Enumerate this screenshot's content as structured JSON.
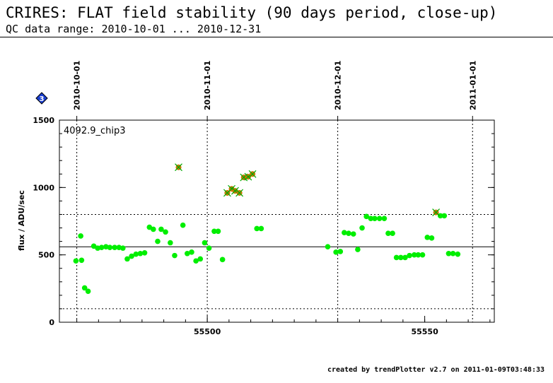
{
  "header": {
    "title": "CRIRES: FLAT field stability (90 days period, close-up)",
    "subtitle": "QC data range: 2010-10-01 ... 2010-12-31"
  },
  "footer": {
    "text": "created by trendPlotter v2.7 on 2011-01-09T03:48:33"
  },
  "marker_badge": {
    "label": "3",
    "color": "#1a3fd0"
  },
  "chart_data": {
    "type": "scatter",
    "panel_label": "4092.9_chip3",
    "xlabel": "",
    "ylabel": "flux / ADU/sec",
    "xlim": [
      55466,
      55566
    ],
    "ylim": [
      0,
      1500
    ],
    "x_ticks": [
      55500,
      55550
    ],
    "x_minor_step": 5,
    "y_ticks": [
      0,
      500,
      1000,
      1500
    ],
    "y_minor_step": 100,
    "date_ticks": [
      {
        "x": 55470,
        "label": "2010-10-01"
      },
      {
        "x": 55500,
        "label": "2010-11-01"
      },
      {
        "x": 55530,
        "label": "2010-12-01"
      },
      {
        "x": 55561,
        "label": "2011-01-01"
      }
    ],
    "reference_lines": {
      "mean": 560,
      "upper_limit": 800,
      "lower_limit": 100
    },
    "grid": false,
    "colors": {
      "normal": "#00ee00",
      "outlier_fill": "#c87800",
      "outlier_cross": "#00aa00"
    },
    "series": [
      {
        "name": "",
        "kind": "normal",
        "points": [
          [
            55469.8,
            455
          ],
          [
            55470.9,
            640
          ],
          [
            55471.1,
            460
          ],
          [
            55471.8,
            255
          ],
          [
            55472.6,
            230
          ],
          [
            55473.9,
            565
          ],
          [
            55474.8,
            550
          ],
          [
            55475.7,
            555
          ],
          [
            55476.7,
            560
          ],
          [
            55477.6,
            555
          ],
          [
            55478.7,
            555
          ],
          [
            55479.7,
            555
          ],
          [
            55480.6,
            550
          ],
          [
            55481.6,
            470
          ],
          [
            55482.6,
            490
          ],
          [
            55483.6,
            505
          ],
          [
            55484.6,
            510
          ],
          [
            55485.6,
            515
          ],
          [
            55486.7,
            705
          ],
          [
            55487.6,
            690
          ],
          [
            55488.6,
            600
          ],
          [
            55489.4,
            690
          ],
          [
            55490.4,
            670
          ],
          [
            55491.5,
            590
          ],
          [
            55492.5,
            495
          ],
          [
            55493.4,
            1150
          ],
          [
            55494.4,
            720
          ],
          [
            55495.4,
            510
          ],
          [
            55496.4,
            520
          ],
          [
            55497.4,
            455
          ],
          [
            55498.4,
            470
          ],
          [
            55499.4,
            590
          ],
          [
            55500.4,
            550
          ],
          [
            55501.6,
            675
          ],
          [
            55502.5,
            675
          ],
          [
            55503.5,
            465
          ],
          [
            55504.6,
            960
          ],
          [
            55505.6,
            990
          ],
          [
            55506.4,
            975
          ],
          [
            55507.4,
            960
          ],
          [
            55508.4,
            1075
          ],
          [
            55509.4,
            1080
          ],
          [
            55510.4,
            1100
          ],
          [
            55511.4,
            695
          ],
          [
            55512.4,
            695
          ],
          [
            55527.7,
            560
          ],
          [
            55529.6,
            520
          ],
          [
            55530.6,
            525
          ],
          [
            55531.5,
            665
          ],
          [
            55532.5,
            660
          ],
          [
            55533.6,
            655
          ],
          [
            55534.6,
            540
          ],
          [
            55535.6,
            700
          ],
          [
            55536.6,
            785
          ],
          [
            55537.6,
            770
          ],
          [
            55538.5,
            770
          ],
          [
            55539.6,
            770
          ],
          [
            55540.7,
            770
          ],
          [
            55541.6,
            660
          ],
          [
            55542.6,
            660
          ],
          [
            55543.5,
            480
          ],
          [
            55544.5,
            480
          ],
          [
            55545.5,
            480
          ],
          [
            55546.5,
            495
          ],
          [
            55547.6,
            500
          ],
          [
            55548.5,
            500
          ],
          [
            55549.5,
            500
          ],
          [
            55550.6,
            630
          ],
          [
            55551.6,
            625
          ],
          [
            55552.6,
            815
          ],
          [
            55553.6,
            790
          ],
          [
            55554.5,
            790
          ],
          [
            55555.5,
            510
          ],
          [
            55556.5,
            510
          ],
          [
            55557.6,
            505
          ]
        ]
      },
      {
        "name": "",
        "kind": "outlier",
        "points": [
          [
            55493.4,
            1150
          ],
          [
            55504.6,
            960
          ],
          [
            55505.6,
            990
          ],
          [
            55506.4,
            975
          ],
          [
            55507.4,
            960
          ],
          [
            55508.4,
            1075
          ],
          [
            55509.4,
            1080
          ],
          [
            55510.4,
            1100
          ],
          [
            55552.6,
            815
          ]
        ]
      }
    ]
  }
}
